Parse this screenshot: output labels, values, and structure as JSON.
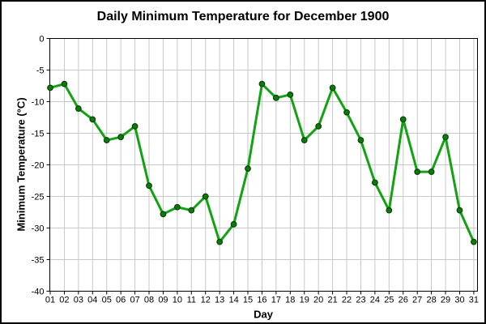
{
  "chart_data": {
    "type": "line",
    "title": "Daily Minimum Temperature for December 1900",
    "xlabel": "Day",
    "ylabel": "Minimum Temperature (°C)",
    "categories": [
      "01",
      "02",
      "03",
      "04",
      "05",
      "06",
      "07",
      "08",
      "09",
      "10",
      "11",
      "12",
      "13",
      "14",
      "15",
      "16",
      "17",
      "18",
      "19",
      "20",
      "21",
      "22",
      "23",
      "24",
      "25",
      "26",
      "27",
      "28",
      "29",
      "30",
      "31"
    ],
    "values": [
      -7.8,
      -7.2,
      -11.1,
      -12.8,
      -16.1,
      -15.6,
      -13.9,
      -23.3,
      -27.8,
      -26.7,
      -27.2,
      -25.0,
      -32.2,
      -29.4,
      -20.6,
      -7.2,
      -9.4,
      -8.9,
      -16.1,
      -13.9,
      -7.8,
      -11.7,
      -16.1,
      -22.8,
      -27.2,
      -12.8,
      -21.1,
      -21.1,
      -15.6,
      -27.2,
      -32.2
    ],
    "ylim": [
      -40,
      0
    ],
    "yticks": [
      0,
      -5,
      -10,
      -15,
      -20,
      -25,
      -30,
      -35,
      -40
    ],
    "grid": true,
    "legend": "none",
    "colors": {
      "line": "#12a212",
      "marker_fill": "#0d7a0d",
      "marker_edge": "#054505",
      "grid": "#c8c8c8",
      "axis": "#000000",
      "background": "#ffffff"
    }
  }
}
